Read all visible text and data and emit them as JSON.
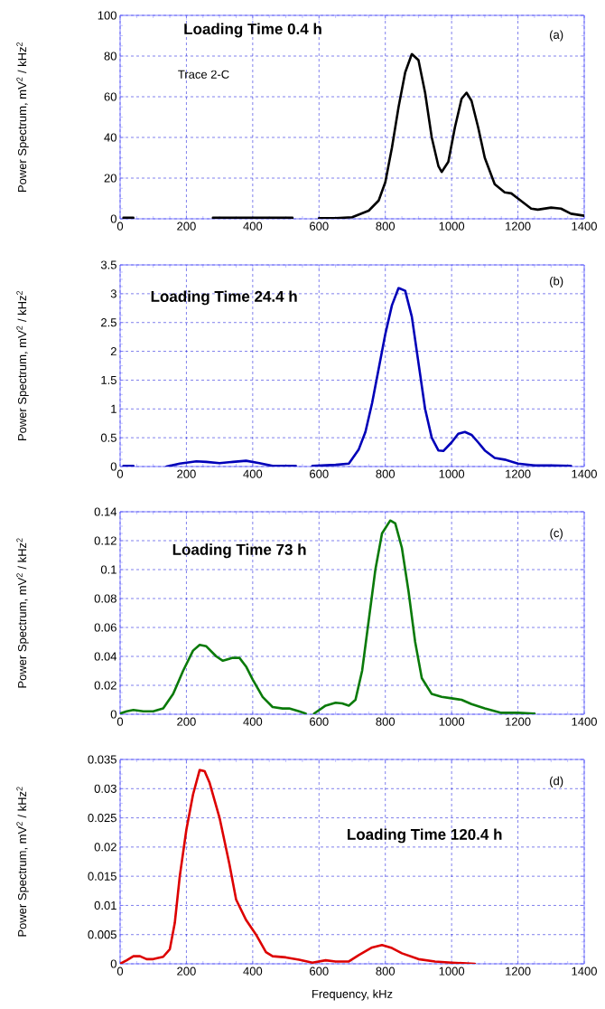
{
  "chart_data": [
    {
      "type": "line",
      "title": "Loading Time 0.4 h",
      "ylabel": "Power Spectrum, mV$^{2}$ / kHz$^{2}$",
      "annotations": [
        "(a)",
        "Trace 2-C"
      ],
      "x": [
        10,
        40,
        160,
        280,
        520,
        560,
        600,
        650,
        700,
        750,
        780,
        800,
        820,
        840,
        860,
        880,
        900,
        920,
        940,
        960,
        970,
        990,
        1010,
        1030,
        1045,
        1060,
        1080,
        1100,
        1130,
        1160,
        1180,
        1200,
        1240,
        1260,
        1300,
        1330,
        1360,
        1400
      ],
      "series": [
        {
          "color": "#000000",
          "values": [
            0.5,
            0.5,
            null,
            0.5,
            0.5,
            null,
            0.3,
            0.3,
            0.8,
            4,
            9,
            18,
            35,
            55,
            72,
            81,
            78,
            62,
            40,
            26,
            23,
            28,
            45,
            59,
            62,
            58,
            45,
            30,
            17,
            13,
            12.5,
            10,
            5,
            4.5,
            5.5,
            5,
            2.5,
            1.5
          ]
        }
      ],
      "xlim": [
        0,
        1400
      ],
      "ylim": [
        0,
        100
      ],
      "xticks": [
        0,
        200,
        400,
        600,
        800,
        1000,
        1200,
        1400
      ],
      "yticks": [
        0,
        20,
        40,
        60,
        80,
        100
      ],
      "grid": true
    },
    {
      "type": "line",
      "title": "Loading Time 24.4 h",
      "ylabel": "Power Spectrum, mV$^{2}$ / kHz$^{2}$",
      "annotations": [
        "(b)"
      ],
      "x": [
        10,
        40,
        90,
        140,
        180,
        230,
        260,
        300,
        340,
        380,
        420,
        460,
        530,
        555,
        580,
        650,
        690,
        720,
        740,
        760,
        780,
        800,
        820,
        840,
        860,
        880,
        900,
        920,
        940,
        960,
        975,
        1000,
        1020,
        1040,
        1060,
        1080,
        1100,
        1130,
        1160,
        1200,
        1250,
        1300,
        1360
      ],
      "series": [
        {
          "color": "#0000b8",
          "values": [
            0.01,
            0.01,
            null,
            0,
            0.05,
            0.09,
            0.08,
            0.06,
            0.08,
            0.1,
            0.06,
            0.01,
            0.01,
            null,
            0.01,
            0.03,
            0.05,
            0.3,
            0.6,
            1.1,
            1.7,
            2.3,
            2.8,
            3.1,
            3.05,
            2.6,
            1.8,
            1.0,
            0.5,
            0.28,
            0.27,
            0.42,
            0.57,
            0.6,
            0.55,
            0.42,
            0.28,
            0.15,
            0.12,
            0.05,
            0.02,
            0.02,
            0.01
          ]
        }
      ],
      "xlim": [
        0,
        1400
      ],
      "ylim": [
        0,
        3.5
      ],
      "xticks": [
        0,
        200,
        400,
        600,
        800,
        1000,
        1200,
        1400
      ],
      "yticks": [
        0,
        0.5,
        1,
        1.5,
        2,
        2.5,
        3,
        3.5
      ],
      "grid": true
    },
    {
      "type": "line",
      "title": "Loading Time 73 h",
      "ylabel": "Power Spectrum, mV$^{2}$ / kHz$^{2}$",
      "annotations": [
        "(c)"
      ],
      "x": [
        0,
        20,
        40,
        70,
        100,
        130,
        160,
        190,
        220,
        240,
        260,
        290,
        310,
        340,
        360,
        380,
        400,
        430,
        460,
        490,
        510,
        540,
        560,
        572,
        585,
        620,
        650,
        670,
        690,
        710,
        730,
        750,
        770,
        790,
        815,
        830,
        850,
        870,
        890,
        910,
        940,
        970,
        1000,
        1030,
        1060,
        1100,
        1150,
        1200,
        1250
      ],
      "series": [
        {
          "color": "#0a7a0a",
          "values": [
            0.0005,
            0.002,
            0.003,
            0.002,
            0.002,
            0.004,
            0.014,
            0.03,
            0.044,
            0.048,
            0.047,
            0.04,
            0.037,
            0.039,
            0.039,
            0.033,
            0.024,
            0.012,
            0.005,
            0.004,
            0.004,
            0.002,
            0.0005,
            null,
            0.0005,
            0.006,
            0.008,
            0.0075,
            0.006,
            0.01,
            0.03,
            0.065,
            0.1,
            0.125,
            0.134,
            0.132,
            0.115,
            0.085,
            0.05,
            0.025,
            0.014,
            0.012,
            0.011,
            0.01,
            0.007,
            0.004,
            0.001,
            0.001,
            0.0005
          ]
        }
      ],
      "xlim": [
        0,
        1400
      ],
      "ylim": [
        0,
        0.14
      ],
      "xticks": [
        0,
        200,
        400,
        600,
        800,
        1000,
        1200,
        1400
      ],
      "yticks": [
        0,
        0.02,
        0.04,
        0.06,
        0.08,
        0.1,
        0.12,
        0.14
      ],
      "grid": true
    },
    {
      "type": "line",
      "title": "Loading Time 120.4 h",
      "xlabel": "Frequency, kHz",
      "ylabel": "Power Spectrum, mV$^{2}$ / kHz$^{2}$",
      "annotations": [
        "(d)"
      ],
      "x": [
        0,
        20,
        40,
        60,
        80,
        100,
        130,
        150,
        165,
        180,
        200,
        220,
        240,
        255,
        270,
        300,
        330,
        350,
        380,
        410,
        440,
        460,
        500,
        540,
        580,
        620,
        650,
        690,
        720,
        760,
        790,
        820,
        850,
        900,
        950,
        1000,
        1070
      ],
      "series": [
        {
          "color": "#dd0000",
          "values": [
            0,
            0.0006,
            0.0013,
            0.0013,
            0.0008,
            0.0008,
            0.0012,
            0.0025,
            0.007,
            0.015,
            0.023,
            0.029,
            0.0332,
            0.033,
            0.031,
            0.025,
            0.017,
            0.011,
            0.0075,
            0.005,
            0.002,
            0.0013,
            0.0011,
            0.0007,
            0.0002,
            0.0006,
            0.0004,
            0.0004,
            0.0015,
            0.0028,
            0.0032,
            0.0027,
            0.0018,
            0.0008,
            0.0004,
            0.0002,
            0
          ]
        }
      ],
      "xlim": [
        0,
        1400
      ],
      "ylim": [
        0,
        0.035
      ],
      "xticks": [
        0,
        200,
        400,
        600,
        800,
        1000,
        1200,
        1400
      ],
      "yticks": [
        0,
        0.005,
        0.01,
        0.015,
        0.02,
        0.025,
        0.03,
        0.035
      ],
      "grid": true
    }
  ]
}
